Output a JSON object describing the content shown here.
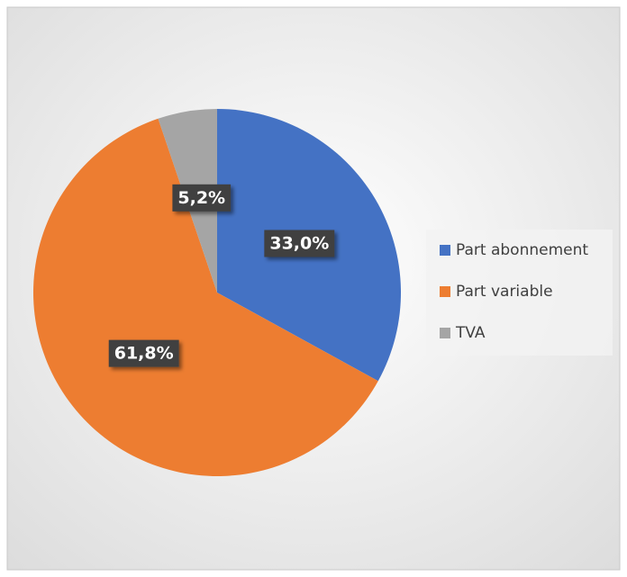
{
  "chart_data": {
    "type": "pie",
    "categories": [
      "Part abonnement",
      "Part variable",
      "TVA"
    ],
    "values": [
      33.0,
      61.8,
      5.2
    ],
    "value_labels": [
      "33,0%",
      "61,8%",
      "5,2%"
    ],
    "colors": [
      "#4472c4",
      "#ed7d31",
      "#a5a5a5"
    ],
    "legend": "right"
  }
}
